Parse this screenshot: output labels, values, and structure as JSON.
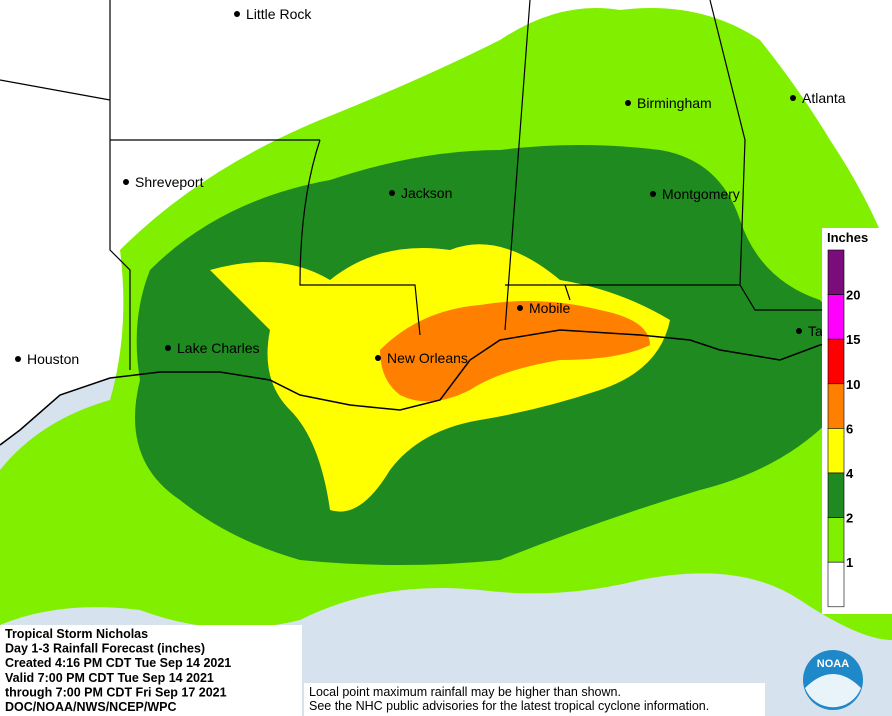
{
  "cities": [
    "Little Rock",
    "Birmingham",
    "Atlanta",
    "Shreveport",
    "Jackson",
    "Montgomery",
    "Houston",
    "Lake Charles",
    "New Orleans",
    "Mobile",
    "Ta"
  ],
  "legend": {
    "title": "Inches",
    "thresholds": [
      20,
      15,
      10,
      6,
      4,
      2,
      1
    ],
    "colors": [
      "#7a0d7a",
      "#ff00ff",
      "#ff0000",
      "#ff8000",
      "#ffff00",
      "#1f8a1f",
      "#80f000",
      "#ffffff"
    ]
  },
  "info": [
    "Tropical Storm Nicholas",
    "Day 1-3 Rainfall Forecast (inches)",
    "Created 4:16 PM CDT Tue Sep 14 2021",
    "Valid 7:00 PM CDT Tue Sep 14 2021",
    "through 7:00 PM CDT Fri Sep 17 2021",
    "DOC/NOAA/NWS/NCEP/WPC"
  ],
  "disclaimer": [
    "Local point maximum rainfall may be higher than shown.",
    "See the NHC public advisories for the latest tropical cyclone information."
  ],
  "logo": "NOAA"
}
